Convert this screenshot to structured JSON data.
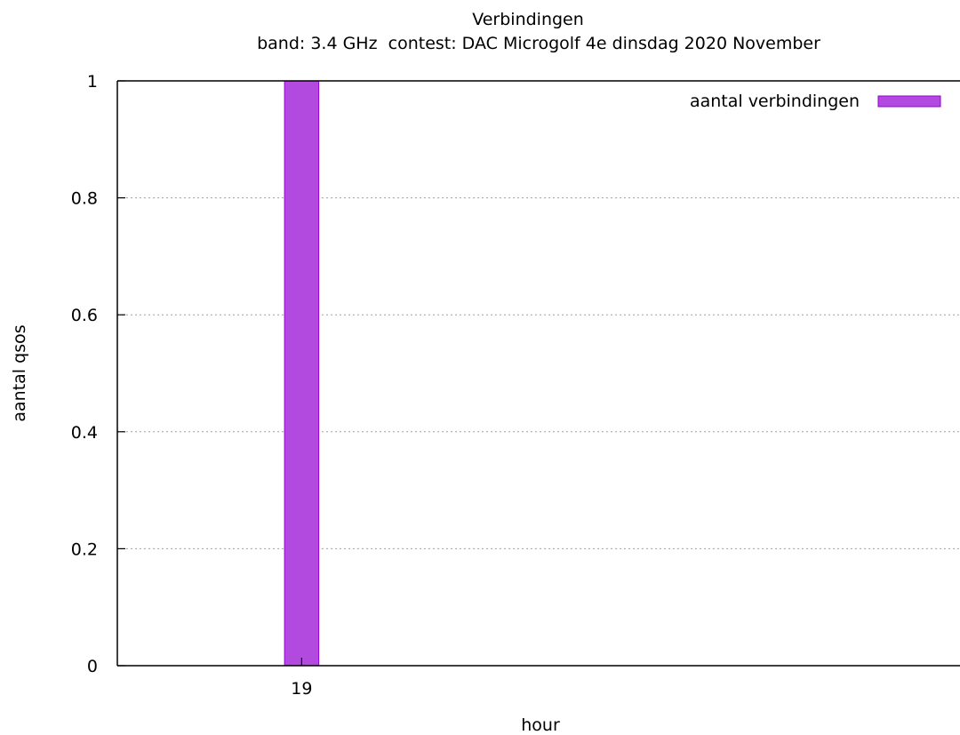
{
  "chart_data": {
    "type": "bar",
    "title": "Verbindingen",
    "subtitle": "band: 3.4 GHz  contest: DAC Microgolf 4e dinsdag 2020 November",
    "xlabel": "hour",
    "ylabel": "aantal qsos",
    "categories": [
      "19"
    ],
    "series": [
      {
        "name": "aantal verbindingen",
        "values": [
          1
        ]
      }
    ],
    "ylim": [
      0,
      1
    ],
    "y_ticks": [
      0,
      0.2,
      0.4,
      0.6,
      0.8,
      1
    ],
    "y_tick_labels": [
      "0",
      "0.2",
      "0.4",
      "0.6",
      "0.8",
      "1"
    ],
    "grid": "horizontal dotted",
    "legend_position": "top-right",
    "colors": {
      "bar_fill": "#b24ae0",
      "bar_stroke": "#9400d3",
      "grid": "#a0a0a0",
      "axis": "#000000"
    }
  }
}
